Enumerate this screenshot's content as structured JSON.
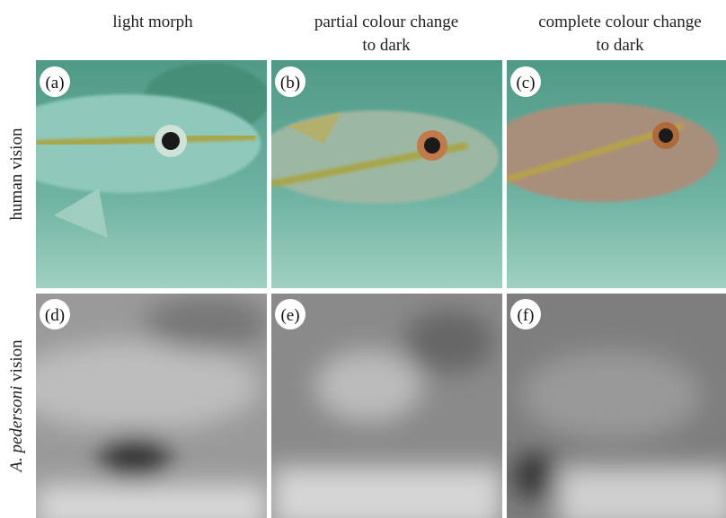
{
  "columns": [
    [
      "light morph"
    ],
    [
      "partial colour change",
      "to dark"
    ],
    [
      "complete colour change",
      "to dark"
    ]
  ],
  "rows": [
    [
      "human vision"
    ],
    [
      "A. pedersoni",
      "vision"
    ]
  ],
  "panels": [
    "(a)",
    "(b)",
    "(c)",
    "(d)",
    "(e)",
    "(f)"
  ]
}
